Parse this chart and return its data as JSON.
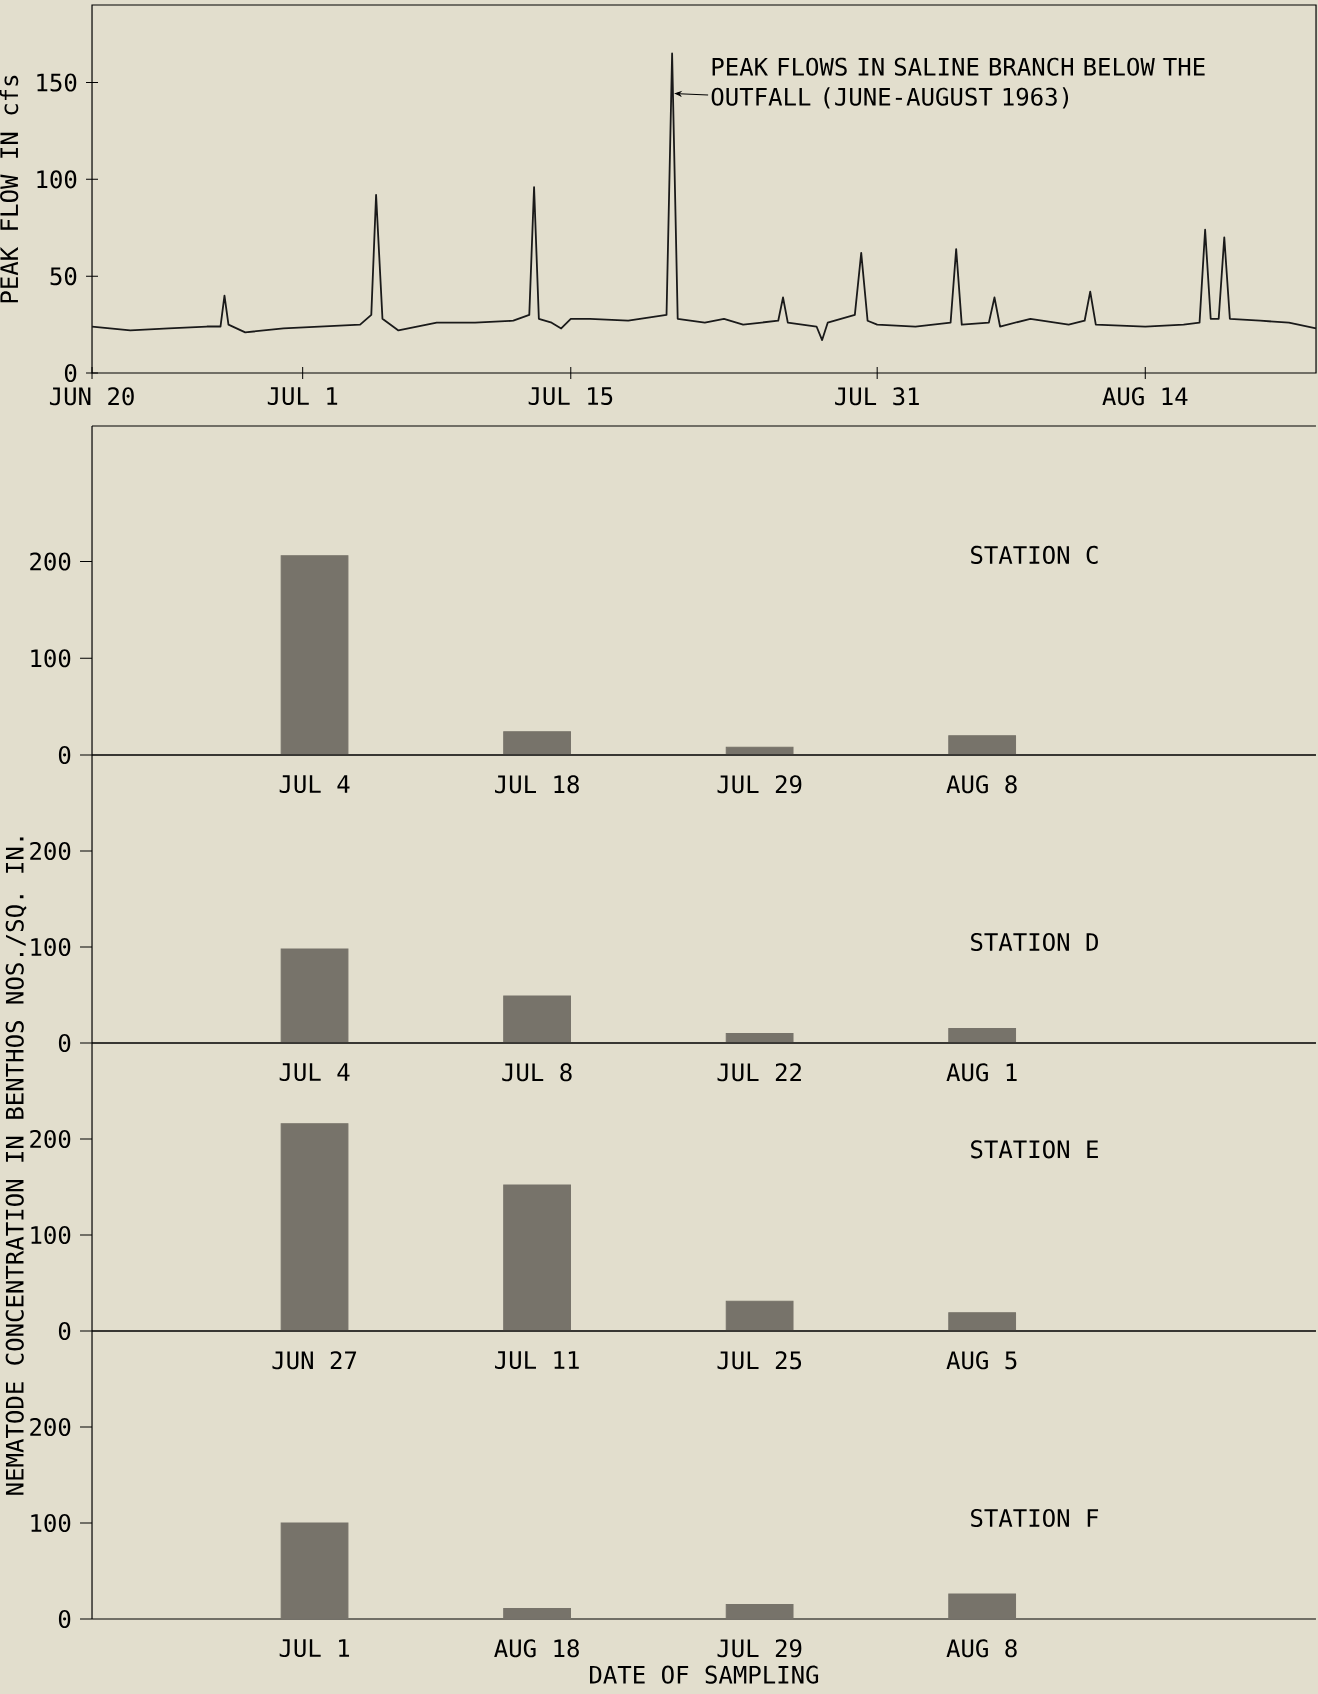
{
  "chart_data": [
    {
      "type": "line",
      "ylabel": "PEAK FLOW IN cfs",
      "color": "#1a1a1a",
      "annotations": [
        {
          "text": "PEAK FLOWS IN SALINE BRANCH BELOW THE OUTFALL (JUNE-AUGUST 1963)",
          "x": "1963-07-20T07:00",
          "y": 165
        }
      ],
      "x": [
        "1963-06-20T00:00",
        "1963-06-22T00:00",
        "1963-06-24T00:00",
        "1963-06-26T00:00",
        "1963-06-26T17:00",
        "1963-06-26T22:00",
        "1963-06-27T03:00",
        "1963-06-28T00:00",
        "1963-06-30T00:00",
        "1963-07-02T00:00",
        "1963-07-04T00:00",
        "1963-07-04T14:00",
        "1963-07-04T20:00",
        "1963-07-05T04:00",
        "1963-07-06T00:00",
        "1963-07-08T00:00",
        "1963-07-10T00:00",
        "1963-07-12T00:00",
        "1963-07-12T20:00",
        "1963-07-13T02:00",
        "1963-07-13T08:00",
        "1963-07-14T00:00",
        "1963-07-14T12:00",
        "1963-07-15T00:00",
        "1963-07-16T00:00",
        "1963-07-18T00:00",
        "1963-07-20T00:00",
        "1963-07-20T07:00",
        "1963-07-20T14:00",
        "1963-07-22T00:00",
        "1963-07-23T00:00",
        "1963-07-24T00:00",
        "1963-07-25T20:00",
        "1963-07-26T02:00",
        "1963-07-26T08:00",
        "1963-07-27T20:00",
        "1963-07-28T03:00",
        "1963-07-28T10:00",
        "1963-07-29T20:00",
        "1963-07-30T04:00",
        "1963-07-30T12:00",
        "1963-07-31T00:00",
        "1963-08-02T00:00",
        "1963-08-03T20:00",
        "1963-08-04T03:00",
        "1963-08-04T10:00",
        "1963-08-05T20:00",
        "1963-08-06T03:00",
        "1963-08-06T10:00",
        "1963-08-08T00:00",
        "1963-08-10T00:00",
        "1963-08-10T20:00",
        "1963-08-11T03:00",
        "1963-08-11T10:00",
        "1963-08-14T00:00",
        "1963-08-16T00:00",
        "1963-08-16T20:00",
        "1963-08-17T03:00",
        "1963-08-17T10:00",
        "1963-08-17T20:00",
        "1963-08-18T03:00",
        "1963-08-18T10:00",
        "1963-08-20T00:00",
        "1963-08-21T12:00",
        "1963-08-22T22:00"
      ],
      "values": [
        24,
        22,
        23,
        24,
        24,
        40,
        25,
        21,
        23,
        24,
        25,
        30,
        92,
        28,
        22,
        26,
        26,
        27,
        30,
        96,
        28,
        26,
        23,
        28,
        28,
        27,
        30,
        165,
        28,
        26,
        28,
        25,
        27,
        39,
        26,
        24,
        17,
        26,
        30,
        62,
        27,
        25,
        24,
        26,
        64,
        25,
        26,
        39,
        24,
        28,
        25,
        27,
        42,
        25,
        24,
        25,
        26,
        74,
        28,
        28,
        70,
        28,
        27,
        26,
        23
      ],
      "xlim": [
        "1963-06-20T00:00",
        "1963-08-22T22:00"
      ],
      "ylim": [
        0,
        190
      ],
      "xticks": [
        {
          "value": "1963-06-20T00:00",
          "label": "JUN 20"
        },
        {
          "value": "1963-07-01T00:00",
          "label": "JUL 1"
        },
        {
          "value": "1963-07-15T00:00",
          "label": "JUL 15"
        },
        {
          "value": "1963-07-31T00:00",
          "label": "JUL 31"
        },
        {
          "value": "1963-08-14T00:00",
          "label": "AUG 14"
        }
      ],
      "yticks": [
        0,
        50,
        100,
        150
      ]
    },
    {
      "type": "bar",
      "title": "STATION C",
      "categories": [
        "JUL 4",
        "JUL 18",
        "JUL 29",
        "AUG 8"
      ],
      "values": [
        206,
        24,
        8,
        20
      ],
      "color": "#77736a",
      "ylim": [
        0,
        340
      ],
      "yticks": [
        0,
        100,
        200
      ]
    },
    {
      "type": "bar",
      "title": "STATION D",
      "ylabel": "NEMATODE CONCENTRATION IN BENTHOS NOS./SQ. IN.",
      "categories": [
        "JUL 4",
        "JUL 8",
        "JUL 22",
        "AUG 1"
      ],
      "values": [
        98,
        49,
        10,
        15
      ],
      "color": "#77736a",
      "ylim": [
        0,
        300
      ],
      "yticks": [
        0,
        100,
        200
      ]
    },
    {
      "type": "bar",
      "title": "STATION E",
      "categories": [
        "JUN 27",
        "JUL 11",
        "JUL 25",
        "AUG 5"
      ],
      "values": [
        216,
        152,
        31,
        19
      ],
      "color": "#77736a",
      "ylim": [
        0,
        300
      ],
      "yticks": [
        0,
        100,
        200
      ]
    },
    {
      "type": "bar",
      "title": "STATION F",
      "xlabel": "DATE OF SAMPLING",
      "categories": [
        "JUL 1",
        "AUG 18",
        "JUL 29",
        "AUG 8"
      ],
      "values": [
        100,
        11,
        15,
        26
      ],
      "color": "#77736a",
      "ylim": [
        0,
        300
      ],
      "yticks": [
        0,
        100,
        200
      ]
    }
  ]
}
